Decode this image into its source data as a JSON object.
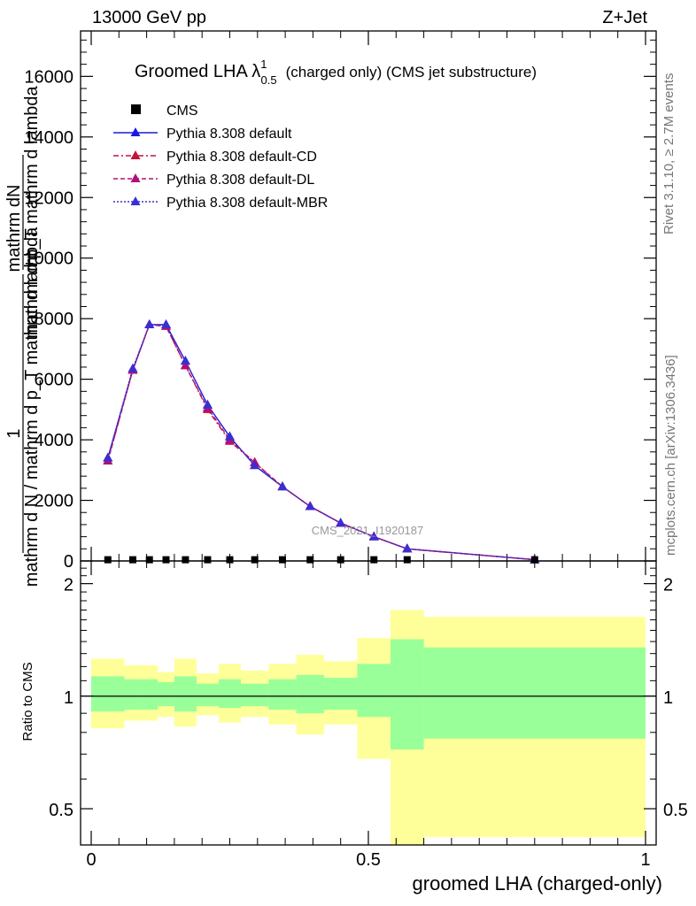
{
  "header": {
    "left": "13000 GeV pp",
    "right": "Z+Jet"
  },
  "side_text": {
    "rivet": "Rivet 3.1.10, ≥ 2.7M events",
    "mcplots": "mcplots.cern.ch [arXiv:1306.3436]"
  },
  "watermark": "CMS_2021_I1920187",
  "chart_data": {
    "type": "line",
    "title": "Groomed LHA λ",
    "title_sup": "1",
    "title_sub": "0.5",
    "title_suffix": "(charged only) (CMS jet substructure)",
    "ylabel_main_top": "mathrm dN",
    "ylabel_main_top2": "mathrm d p_T mathrm d lambda",
    "ylabel_main_one": "1",
    "ylabel_main_bottom": "mathrm d N / mathrm d p_T mathrm d lambda",
    "ylabel_ratio": "Ratio to CMS",
    "xlabel": "groomed LHA (charged-only)",
    "xlim": [
      0,
      1
    ],
    "ylim_main": [
      0,
      17500
    ],
    "ylim_ratio": [
      0.4,
      2.3
    ],
    "main_yticks": [
      0,
      2000,
      4000,
      6000,
      8000,
      10000,
      12000,
      14000,
      16000
    ],
    "main_yticklabels": [
      "0",
      "2000",
      "4000",
      "6000",
      "8000",
      "10000",
      "12000",
      "14000",
      "16000"
    ],
    "ratio_yticks": [
      0.5,
      1,
      2
    ],
    "ratio_yticklabels": [
      "0.5",
      "1",
      "2"
    ],
    "xticks": [
      0,
      0.5,
      1
    ],
    "xticklabels": [
      "0",
      "0.5",
      "1"
    ],
    "bin_edges": [
      0,
      0.06,
      0.09,
      0.12,
      0.15,
      0.19,
      0.23,
      0.27,
      0.32,
      0.37,
      0.42,
      0.48,
      0.54,
      0.6,
      1.0
    ],
    "cms_x": [
      0.03,
      0.075,
      0.105,
      0.135,
      0.17,
      0.21,
      0.25,
      0.295,
      0.345,
      0.395,
      0.45,
      0.51,
      0.57,
      0.8
    ],
    "cms_y": [
      40,
      40,
      40,
      40,
      40,
      40,
      40,
      40,
      40,
      40,
      40,
      40,
      40,
      40
    ],
    "ratio_band_green": [
      [
        0.91,
        1.13
      ],
      [
        0.92,
        1.11
      ],
      [
        0.92,
        1.11
      ],
      [
        0.94,
        1.09
      ],
      [
        0.91,
        1.13
      ],
      [
        0.94,
        1.08
      ],
      [
        0.93,
        1.11
      ],
      [
        0.94,
        1.08
      ],
      [
        0.92,
        1.11
      ],
      [
        0.9,
        1.14
      ],
      [
        0.92,
        1.12
      ],
      [
        0.88,
        1.22
      ],
      [
        0.72,
        1.42
      ],
      [
        0.77,
        1.35
      ]
    ],
    "ratio_band_yellow": [
      [
        0.82,
        1.26
      ],
      [
        0.86,
        1.21
      ],
      [
        0.86,
        1.21
      ],
      [
        0.88,
        1.16
      ],
      [
        0.83,
        1.26
      ],
      [
        0.89,
        1.15
      ],
      [
        0.85,
        1.22
      ],
      [
        0.88,
        1.17
      ],
      [
        0.84,
        1.22
      ],
      [
        0.79,
        1.29
      ],
      [
        0.84,
        1.24
      ],
      [
        0.68,
        1.43
      ],
      [
        0.35,
        1.7
      ],
      [
        0.42,
        1.63
      ]
    ],
    "series": [
      {
        "name": "CMS",
        "marker": "square",
        "color": "#000000",
        "dash": "none"
      },
      {
        "name": "Pythia 8.308 default",
        "marker": "triangle",
        "color": "#1a1adf",
        "dash": "solid",
        "values": [
          3400,
          6300,
          7800,
          7800,
          6600,
          5150,
          4100,
          3150,
          2450,
          1800,
          1250,
          800,
          400,
          40
        ]
      },
      {
        "name": "Pythia 8.308 default-CD",
        "marker": "triangle",
        "color": "#c0143c",
        "dash": "dashdot",
        "values": [
          3300,
          6300,
          7800,
          7750,
          6450,
          5000,
          3950,
          3250,
          2450,
          1800,
          1250,
          800,
          400,
          40
        ]
      },
      {
        "name": "Pythia 8.308 default-DL",
        "marker": "triangle",
        "color": "#b0107a",
        "dash": "dashed",
        "values": [
          3300,
          6300,
          7800,
          7750,
          6450,
          5050,
          4000,
          3250,
          2450,
          1800,
          1250,
          800,
          400,
          40
        ]
      },
      {
        "name": "Pythia 8.308 default-MBR",
        "marker": "triangle",
        "color": "#3a2fd0",
        "dash": "dotted",
        "values": [
          3400,
          6350,
          7800,
          7800,
          6600,
          5150,
          4100,
          3150,
          2450,
          1800,
          1250,
          800,
          400,
          40
        ]
      }
    ]
  }
}
